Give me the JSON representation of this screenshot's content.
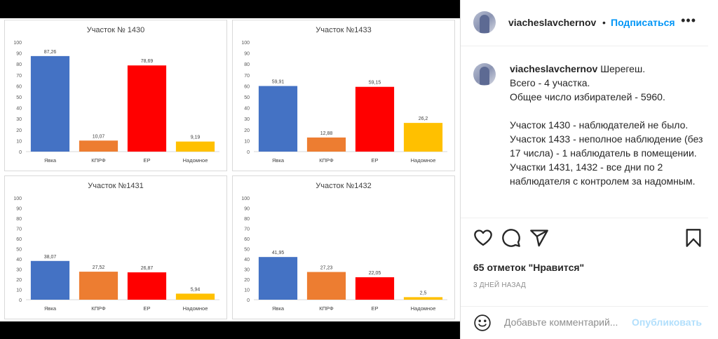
{
  "post": {
    "username": "viacheslavchernov",
    "separator": "•",
    "follow_label": "Подписаться",
    "more_label": "•••",
    "caption_lines": [
      "Шерегеш.",
      "Всего - 4 участка.",
      "Общее число избирателей - 5960.",
      "",
      "Участок 1430 - наблюдателей не было.",
      "Участок 1433 - неполное наблюдение (без 17 числа) - 1 наблюдатель в помещении.",
      "Участки 1431, 1432 - все дни по 2 наблюдателя с контролем за надомным."
    ],
    "likes_text": "65 отметок \"Нравится\"",
    "date_text": "3 ДНЕЙ НАЗАД",
    "comment_placeholder": "Добавьте комментарий...",
    "publish_label": "Опубликовать"
  },
  "icons": {
    "like": "heart-icon",
    "comment": "comment-bubble-icon",
    "share": "paper-plane-icon",
    "save": "bookmark-icon",
    "emoji": "smiley-icon",
    "more": "ellipsis-icon"
  },
  "colors": {
    "follow": "#0095f6",
    "publish_disabled": "#b2dffc",
    "text": "#262626",
    "muted": "#8e8e8e"
  },
  "chart_data": [
    {
      "type": "bar",
      "title": "Участок № 1430",
      "categories": [
        "Явка",
        "КПРФ",
        "ЕР",
        "Надомное"
      ],
      "values": [
        87.26,
        10.07,
        78.69,
        9.19
      ],
      "labels": [
        "87,26",
        "10,07",
        "78,69",
        "9,19"
      ],
      "colors": [
        "#4472c4",
        "#ed7d31",
        "#ff0000",
        "#ffc000"
      ],
      "ylim": [
        0,
        100
      ],
      "yticks": [
        0,
        10,
        20,
        30,
        40,
        50,
        60,
        70,
        80,
        90,
        100
      ],
      "grid": false
    },
    {
      "type": "bar",
      "title": "Участок №1433",
      "categories": [
        "Явка",
        "КПРФ",
        "ЕР",
        "Надомное"
      ],
      "values": [
        59.91,
        12.88,
        59.15,
        26.2
      ],
      "labels": [
        "59,91",
        "12,88",
        "59,15",
        "26,2"
      ],
      "colors": [
        "#4472c4",
        "#ed7d31",
        "#ff0000",
        "#ffc000"
      ],
      "ylim": [
        0,
        100
      ],
      "yticks": [
        0,
        10,
        20,
        30,
        40,
        50,
        60,
        70,
        80,
        90,
        100
      ],
      "grid": false
    },
    {
      "type": "bar",
      "title": "Участок №1431",
      "categories": [
        "Явка",
        "КПРФ",
        "ЕР",
        "Надомное"
      ],
      "values": [
        38.07,
        27.52,
        26.87,
        5.94
      ],
      "labels": [
        "38,07",
        "27,52",
        "26,87",
        "5,94"
      ],
      "colors": [
        "#4472c4",
        "#ed7d31",
        "#ff0000",
        "#ffc000"
      ],
      "ylim": [
        0,
        100
      ],
      "yticks": [
        0,
        10,
        20,
        30,
        40,
        50,
        60,
        70,
        80,
        90,
        100
      ],
      "grid": false
    },
    {
      "type": "bar",
      "title": "Участок №1432",
      "categories": [
        "Явка",
        "КПРФ",
        "ЕР",
        "Надомное"
      ],
      "values": [
        41.95,
        27.23,
        22.05,
        2.5
      ],
      "labels": [
        "41,95",
        "27,23",
        "22,05",
        "2,5"
      ],
      "colors": [
        "#4472c4",
        "#ed7d31",
        "#ff0000",
        "#ffc000"
      ],
      "ylim": [
        0,
        100
      ],
      "yticks": [
        0,
        10,
        20,
        30,
        40,
        50,
        60,
        70,
        80,
        90,
        100
      ],
      "grid": false
    }
  ]
}
